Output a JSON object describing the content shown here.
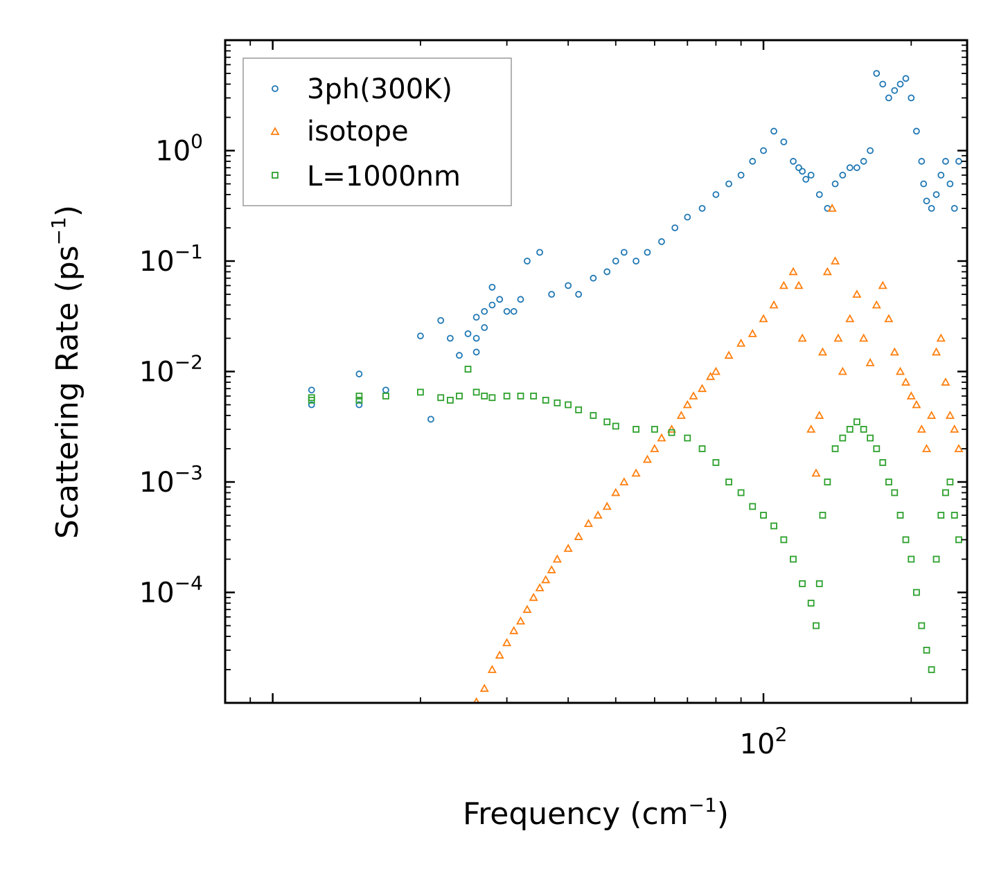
{
  "chart_data": {
    "type": "scatter",
    "title": "",
    "xlabel": {
      "base": "Frequency (cm",
      "sup": "−1",
      "tail": ")"
    },
    "ylabel": {
      "base": "Scattering Rate (ps",
      "sup": "−1",
      "tail": ")"
    },
    "xscale": "log",
    "yscale": "log",
    "xlim": [
      8,
      260
    ],
    "ylim": [
      1e-05,
      10
    ],
    "x_ticks": [
      {
        "value": 100,
        "base": "10",
        "exp": "2"
      }
    ],
    "y_ticks": [
      {
        "value": 1,
        "base": "10",
        "exp": "0"
      },
      {
        "value": 0.1,
        "base": "10",
        "exp": "−1"
      },
      {
        "value": 0.01,
        "base": "10",
        "exp": "−2"
      },
      {
        "value": 0.001,
        "base": "10",
        "exp": "−3"
      },
      {
        "value": 0.0001,
        "base": "10",
        "exp": "−4"
      }
    ],
    "legend_position": "top-left",
    "series": [
      {
        "name": "3ph(300K)",
        "marker": "circle",
        "color": "#1f77b4",
        "x": [
          12,
          12,
          15,
          15,
          17,
          20,
          21,
          22,
          23,
          24,
          25,
          26,
          26,
          26,
          27,
          27,
          28,
          28,
          29,
          30,
          31,
          32,
          33,
          35,
          37,
          40,
          42,
          45,
          48,
          50,
          52,
          55,
          58,
          62,
          66,
          70,
          75,
          80,
          85,
          90,
          95,
          100,
          105,
          110,
          115,
          118,
          120,
          122,
          125,
          130,
          135,
          140,
          145,
          150,
          155,
          160,
          165,
          170,
          175,
          180,
          185,
          190,
          195,
          200,
          205,
          210,
          212,
          215,
          220,
          225,
          230,
          235,
          240,
          245,
          250
        ],
        "y": [
          0.0068,
          0.005,
          0.0095,
          0.005,
          0.0068,
          0.021,
          0.0037,
          0.029,
          0.02,
          0.014,
          0.022,
          0.031,
          0.02,
          0.015,
          0.025,
          0.035,
          0.058,
          0.04,
          0.045,
          0.035,
          0.035,
          0.045,
          0.1,
          0.12,
          0.05,
          0.06,
          0.05,
          0.07,
          0.08,
          0.1,
          0.12,
          0.1,
          0.12,
          0.15,
          0.2,
          0.25,
          0.3,
          0.4,
          0.5,
          0.6,
          0.8,
          1.0,
          1.5,
          1.2,
          0.8,
          0.7,
          0.65,
          0.55,
          0.6,
          0.4,
          0.3,
          0.5,
          0.6,
          0.7,
          0.7,
          0.8,
          1.0,
          5.0,
          4.0,
          3.0,
          3.5,
          4.0,
          4.5,
          3.0,
          1.5,
          0.8,
          0.5,
          0.35,
          0.3,
          0.4,
          0.6,
          0.8,
          0.5,
          0.3,
          0.8
        ]
      },
      {
        "name": "isotope",
        "marker": "triangle",
        "color": "#ff7f0e",
        "x": [
          26,
          27,
          28,
          29,
          30,
          31,
          32,
          33,
          34,
          35,
          36,
          37,
          38,
          40,
          42,
          44,
          46,
          48,
          50,
          52,
          55,
          58,
          60,
          62,
          65,
          68,
          70,
          72,
          75,
          78,
          80,
          85,
          90,
          95,
          100,
          105,
          110,
          115,
          118,
          120,
          125,
          128,
          130,
          132,
          135,
          138,
          140,
          142,
          145,
          150,
          155,
          160,
          165,
          170,
          175,
          180,
          185,
          190,
          195,
          200,
          205,
          210,
          215,
          220,
          225,
          230,
          235,
          240,
          245,
          250
        ],
        "y": [
          1.02e-05,
          1.35e-05,
          2e-05,
          2.7e-05,
          3.5e-05,
          4.5e-05,
          5.5e-05,
          7e-05,
          9e-05,
          0.00011,
          0.00013,
          0.00016,
          0.0002,
          0.00025,
          0.00032,
          0.00042,
          0.0005,
          0.0006,
          0.0008,
          0.001,
          0.0012,
          0.0016,
          0.002,
          0.0025,
          0.003,
          0.004,
          0.005,
          0.006,
          0.007,
          0.009,
          0.01,
          0.014,
          0.018,
          0.022,
          0.03,
          0.04,
          0.06,
          0.08,
          0.06,
          0.02,
          0.003,
          0.0012,
          0.004,
          0.015,
          0.08,
          0.3,
          0.1,
          0.02,
          0.01,
          0.03,
          0.05,
          0.02,
          0.012,
          0.04,
          0.06,
          0.03,
          0.015,
          0.01,
          0.008,
          0.006,
          0.005,
          0.003,
          0.002,
          0.004,
          0.015,
          0.02,
          0.008,
          0.004,
          0.003,
          0.002
        ]
      },
      {
        "name": "L=1000nm",
        "marker": "square",
        "color": "#2ca02c",
        "x": [
          12,
          12,
          15,
          15,
          17,
          20,
          22,
          23,
          24,
          25,
          26,
          27,
          28,
          30,
          32,
          34,
          36,
          38,
          40,
          42,
          45,
          48,
          50,
          55,
          60,
          65,
          70,
          75,
          80,
          85,
          90,
          95,
          100,
          105,
          110,
          115,
          120,
          125,
          128,
          130,
          132,
          135,
          140,
          145,
          150,
          155,
          160,
          165,
          170,
          175,
          180,
          185,
          190,
          195,
          200,
          205,
          210,
          215,
          220,
          225,
          230,
          235,
          240,
          245,
          250
        ],
        "y": [
          0.0058,
          0.0055,
          0.006,
          0.0055,
          0.006,
          0.0065,
          0.0058,
          0.0055,
          0.006,
          0.0105,
          0.0065,
          0.006,
          0.0058,
          0.006,
          0.006,
          0.006,
          0.0055,
          0.0052,
          0.005,
          0.0045,
          0.004,
          0.0035,
          0.0032,
          0.003,
          0.003,
          0.0028,
          0.0025,
          0.002,
          0.0015,
          0.001,
          0.0008,
          0.0006,
          0.0005,
          0.0004,
          0.0003,
          0.0002,
          0.00012,
          8e-05,
          5e-05,
          0.00012,
          0.0005,
          0.001,
          0.002,
          0.0025,
          0.003,
          0.0035,
          0.003,
          0.0025,
          0.002,
          0.0015,
          0.001,
          0.0008,
          0.0005,
          0.0003,
          0.0002,
          0.0001,
          5e-05,
          3e-05,
          2e-05,
          0.0002,
          0.0005,
          0.0008,
          0.001,
          0.0005,
          0.0003
        ]
      }
    ]
  }
}
